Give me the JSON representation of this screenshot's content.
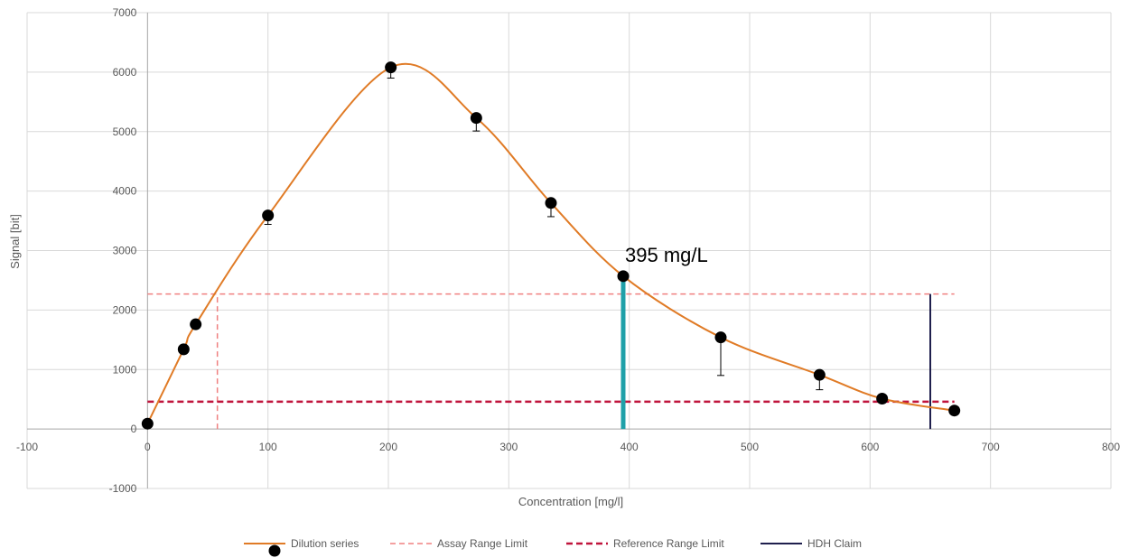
{
  "chart_data": {
    "type": "scatter",
    "title": "",
    "xlabel": "Concentration [mg/l]",
    "ylabel": "Signal [bit]",
    "xlim": [
      -100,
      800
    ],
    "ylim": [
      -1000,
      7000
    ],
    "x_ticks": [
      -100,
      0,
      100,
      200,
      300,
      400,
      500,
      600,
      700,
      800
    ],
    "y_ticks": [
      -1000,
      0,
      1000,
      2000,
      3000,
      4000,
      5000,
      6000,
      7000
    ],
    "x_tick_labels": [
      "-100",
      "0",
      "100",
      "200",
      "300",
      "400",
      "500",
      "600",
      "700",
      "800"
    ],
    "y_tick_labels": [
      "-1000",
      "0",
      "1000",
      "2000",
      "3000",
      "4000",
      "5000",
      "6000",
      "7000"
    ],
    "grid": true,
    "legend_position": "bottom",
    "series": [
      {
        "name": "Dilution series",
        "style": "smooth-line-with-markers",
        "color": "#E07B26",
        "marker_color": "#000000",
        "x": [
          0,
          30,
          40,
          100,
          202,
          273,
          335,
          395,
          476,
          558,
          610,
          670
        ],
        "y": [
          90,
          1340,
          1760,
          3590,
          6080,
          5230,
          3800,
          2570,
          1540,
          910,
          510,
          310
        ],
        "error_low": [
          20,
          40,
          60,
          150,
          180,
          220,
          230,
          0,
          640,
          250,
          50,
          30
        ]
      },
      {
        "name": "Assay Range Limit",
        "style": "dashed",
        "color": "#F08080",
        "segments": [
          {
            "x": [
              0,
              670
            ],
            "y": [
              2270,
              2270
            ]
          },
          {
            "x": [
              58,
              58
            ],
            "y": [
              0,
              2270
            ]
          }
        ]
      },
      {
        "name": "Reference Range Limit",
        "style": "dashed-bold",
        "color": "#C0143C",
        "segments": [
          {
            "x": [
              0,
              670
            ],
            "y": [
              460,
              460
            ]
          }
        ]
      },
      {
        "name": "HDH Claim",
        "style": "solid",
        "color": "#1F1F4D",
        "segments": [
          {
            "x": [
              650,
              650
            ],
            "y": [
              0,
              2270
            ]
          }
        ]
      }
    ],
    "highlight_bar": {
      "x": 395,
      "y": 2570,
      "color": "#1FA0A8"
    },
    "annotations": [
      {
        "text": "395 mg/L",
        "x": 395,
        "y": 2900
      }
    ]
  }
}
